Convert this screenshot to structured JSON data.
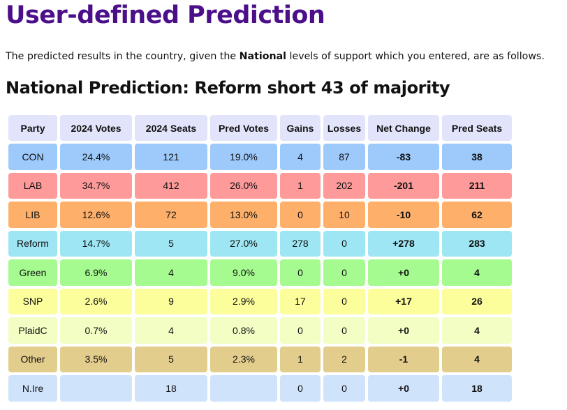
{
  "page": {
    "title": "User-defined Prediction",
    "intro_before": "The predicted results in the country, given the ",
    "intro_bold": "National",
    "intro_after": " levels of support which you entered, are as follows.",
    "subtitle": "National Prediction: Reform short 43 of majority"
  },
  "table": {
    "headers": [
      "Party",
      "2024 Votes",
      "2024 Seats",
      "Pred Votes",
      "Gains",
      "Losses",
      "Net Change",
      "Pred Seats"
    ],
    "rows": [
      {
        "party": "CON",
        "votes_2024": "24.4%",
        "seats_2024": "121",
        "pred_votes": "19.0%",
        "gains": "4",
        "losses": "87",
        "net_change": "-83",
        "pred_seats": "38",
        "color": "#9dc9fb"
      },
      {
        "party": "LAB",
        "votes_2024": "34.7%",
        "seats_2024": "412",
        "pred_votes": "26.0%",
        "gains": "1",
        "losses": "202",
        "net_change": "-201",
        "pred_seats": "211",
        "color": "#fe9a9a"
      },
      {
        "party": "LIB",
        "votes_2024": "12.6%",
        "seats_2024": "72",
        "pred_votes": "13.0%",
        "gains": "0",
        "losses": "10",
        "net_change": "-10",
        "pred_seats": "62",
        "color": "#feb06b"
      },
      {
        "party": "Reform",
        "votes_2024": "14.7%",
        "seats_2024": "5",
        "pred_votes": "27.0%",
        "gains": "278",
        "losses": "0",
        "net_change": "+278",
        "pred_seats": "283",
        "color": "#9ee6f4"
      },
      {
        "party": "Green",
        "votes_2024": "6.9%",
        "seats_2024": "4",
        "pred_votes": "9.0%",
        "gains": "0",
        "losses": "0",
        "net_change": "+0",
        "pred_seats": "4",
        "color": "#a5fb8f"
      },
      {
        "party": "SNP",
        "votes_2024": "2.6%",
        "seats_2024": "9",
        "pred_votes": "2.9%",
        "gains": "17",
        "losses": "0",
        "net_change": "+17",
        "pred_seats": "26",
        "color": "#fcfe9c"
      },
      {
        "party": "PlaidC",
        "votes_2024": "0.7%",
        "seats_2024": "4",
        "pred_votes": "0.8%",
        "gains": "0",
        "losses": "0",
        "net_change": "+0",
        "pred_seats": "4",
        "color": "#f2fec4"
      },
      {
        "party": "Other",
        "votes_2024": "3.5%",
        "seats_2024": "5",
        "pred_votes": "2.3%",
        "gains": "1",
        "losses": "2",
        "net_change": "-1",
        "pred_seats": "4",
        "color": "#e3cd8c"
      },
      {
        "party": "N.Ire",
        "votes_2024": "",
        "seats_2024": "18",
        "pred_votes": "",
        "gains": "0",
        "losses": "0",
        "net_change": "+0",
        "pred_seats": "18",
        "color": "#cfe3fb"
      }
    ]
  },
  "colors": {
    "title": "#4b0f8a",
    "header_bg": "#e2e4fb"
  }
}
